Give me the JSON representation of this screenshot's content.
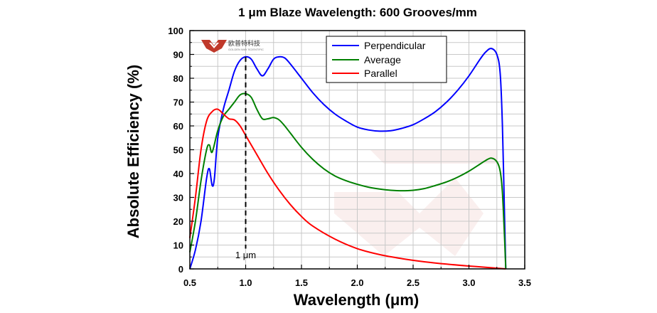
{
  "logo": {
    "chinese_text": "欧普特科技",
    "english_text": "GOLDEN WAY SCIENTIFIC",
    "brand_color": "#c0392b"
  },
  "chart_data": {
    "type": "line",
    "title": "1 μm Blaze Wavelength: 600 Grooves/mm",
    "xlabel": "Wavelength (μm)",
    "ylabel": "Absolute Efficiency (%)",
    "xlim": [
      0.5,
      3.5
    ],
    "ylim": [
      0,
      100
    ],
    "xticks": [
      "0.5",
      "1.0",
      "1.5",
      "2.0",
      "2.5",
      "3.0",
      "3.5"
    ],
    "yticks": [
      "0",
      "10",
      "20",
      "30",
      "40",
      "50",
      "60",
      "70",
      "80",
      "90",
      "100"
    ],
    "grid": true,
    "legend_position": "top-right",
    "annotation": {
      "text": "1 μm",
      "x": 1.0
    },
    "series": [
      {
        "name": "Perpendicular",
        "color": "#0000ff",
        "points": [
          [
            0.5,
            0
          ],
          [
            0.55,
            8
          ],
          [
            0.6,
            20
          ],
          [
            0.65,
            38
          ],
          [
            0.675,
            42
          ],
          [
            0.7,
            35
          ],
          [
            0.72,
            38
          ],
          [
            0.75,
            55
          ],
          [
            0.8,
            67
          ],
          [
            0.85,
            75
          ],
          [
            0.9,
            83
          ],
          [
            0.95,
            87.5
          ],
          [
            1.0,
            89
          ],
          [
            1.05,
            88
          ],
          [
            1.1,
            84
          ],
          [
            1.15,
            81
          ],
          [
            1.2,
            84
          ],
          [
            1.25,
            88
          ],
          [
            1.3,
            89
          ],
          [
            1.35,
            88.5
          ],
          [
            1.4,
            86
          ],
          [
            1.5,
            80
          ],
          [
            1.6,
            74
          ],
          [
            1.7,
            69
          ],
          [
            1.8,
            65
          ],
          [
            1.9,
            62
          ],
          [
            2.0,
            59.5
          ],
          [
            2.1,
            58.3
          ],
          [
            2.2,
            57.8
          ],
          [
            2.3,
            58
          ],
          [
            2.4,
            59
          ],
          [
            2.5,
            60.5
          ],
          [
            2.6,
            63
          ],
          [
            2.7,
            66
          ],
          [
            2.8,
            70
          ],
          [
            2.9,
            75
          ],
          [
            3.0,
            81
          ],
          [
            3.1,
            88
          ],
          [
            3.15,
            91
          ],
          [
            3.2,
            92.5
          ],
          [
            3.25,
            90
          ],
          [
            3.28,
            82
          ],
          [
            3.3,
            60
          ],
          [
            3.32,
            20
          ],
          [
            3.33,
            0
          ]
        ]
      },
      {
        "name": "Average",
        "color": "#008000",
        "points": [
          [
            0.5,
            7
          ],
          [
            0.55,
            20
          ],
          [
            0.6,
            37
          ],
          [
            0.65,
            50
          ],
          [
            0.675,
            52
          ],
          [
            0.7,
            49
          ],
          [
            0.75,
            58
          ],
          [
            0.8,
            64
          ],
          [
            0.85,
            67
          ],
          [
            0.9,
            70
          ],
          [
            0.95,
            73
          ],
          [
            1.0,
            73.5
          ],
          [
            1.05,
            72
          ],
          [
            1.1,
            67
          ],
          [
            1.15,
            63
          ],
          [
            1.2,
            63
          ],
          [
            1.25,
            63.5
          ],
          [
            1.3,
            62.5
          ],
          [
            1.35,
            60
          ],
          [
            1.4,
            57
          ],
          [
            1.5,
            51
          ],
          [
            1.6,
            46
          ],
          [
            1.7,
            42
          ],
          [
            1.8,
            39
          ],
          [
            1.9,
            37
          ],
          [
            2.0,
            35.5
          ],
          [
            2.1,
            34.3
          ],
          [
            2.2,
            33.5
          ],
          [
            2.3,
            33
          ],
          [
            2.4,
            32.8
          ],
          [
            2.5,
            33
          ],
          [
            2.6,
            33.7
          ],
          [
            2.7,
            35
          ],
          [
            2.8,
            36.5
          ],
          [
            2.9,
            38.5
          ],
          [
            3.0,
            41
          ],
          [
            3.1,
            44
          ],
          [
            3.15,
            45.5
          ],
          [
            3.2,
            46.5
          ],
          [
            3.25,
            45
          ],
          [
            3.28,
            41
          ],
          [
            3.3,
            32
          ],
          [
            3.32,
            12
          ],
          [
            3.33,
            0
          ]
        ]
      },
      {
        "name": "Parallel",
        "color": "#ff0000",
        "points": [
          [
            0.5,
            13
          ],
          [
            0.55,
            30
          ],
          [
            0.6,
            50
          ],
          [
            0.65,
            62
          ],
          [
            0.7,
            66
          ],
          [
            0.75,
            67
          ],
          [
            0.8,
            65
          ],
          [
            0.85,
            63
          ],
          [
            0.9,
            62.5
          ],
          [
            0.95,
            60
          ],
          [
            1.0,
            56
          ],
          [
            1.1,
            48
          ],
          [
            1.2,
            40
          ],
          [
            1.3,
            33
          ],
          [
            1.4,
            27
          ],
          [
            1.5,
            22
          ],
          [
            1.6,
            18
          ],
          [
            1.8,
            12.5
          ],
          [
            2.0,
            8.5
          ],
          [
            2.2,
            6
          ],
          [
            2.4,
            4.3
          ],
          [
            2.6,
            3
          ],
          [
            2.8,
            2
          ],
          [
            3.0,
            1.2
          ],
          [
            3.2,
            0.5
          ],
          [
            3.33,
            0
          ]
        ]
      }
    ]
  }
}
